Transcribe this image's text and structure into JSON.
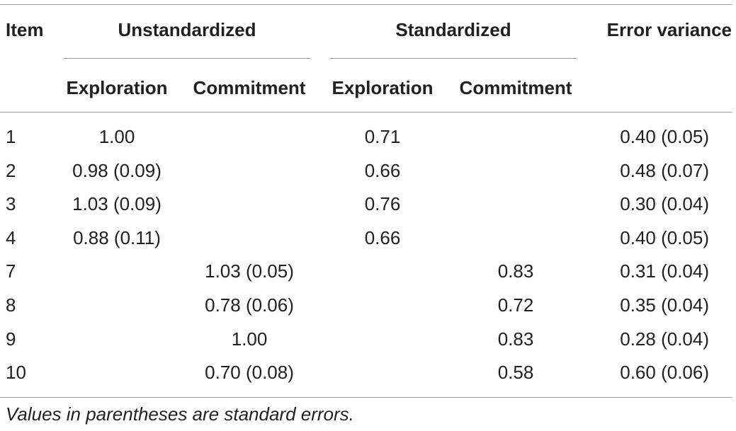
{
  "headers": {
    "item": "Item",
    "unstandardized": "Unstandardized",
    "standardized": "Standardized",
    "error_variance": "Error variance",
    "sub": [
      "Exploration",
      "Commitment",
      "Exploration",
      "Commitment"
    ]
  },
  "rows": [
    {
      "item": "1",
      "u_exp": "1.00",
      "u_com": "",
      "s_exp": "0.71",
      "s_com": "",
      "err": "0.40 (0.05)"
    },
    {
      "item": "2",
      "u_exp": "0.98 (0.09)",
      "u_com": "",
      "s_exp": "0.66",
      "s_com": "",
      "err": "0.48 (0.07)"
    },
    {
      "item": "3",
      "u_exp": "1.03 (0.09)",
      "u_com": "",
      "s_exp": "0.76",
      "s_com": "",
      "err": "0.30 (0.04)"
    },
    {
      "item": "4",
      "u_exp": "0.88 (0.11)",
      "u_com": "",
      "s_exp": "0.66",
      "s_com": "",
      "err": "0.40 (0.05)"
    },
    {
      "item": "7",
      "u_exp": "",
      "u_com": "1.03 (0.05)",
      "s_exp": "",
      "s_com": "0.83",
      "err": "0.31 (0.04)"
    },
    {
      "item": "8",
      "u_exp": "",
      "u_com": "0.78 (0.06)",
      "s_exp": "",
      "s_com": "0.72",
      "err": "0.35 (0.04)"
    },
    {
      "item": "9",
      "u_exp": "",
      "u_com": "1.00",
      "s_exp": "",
      "s_com": "0.83",
      "err": "0.28 (0.04)"
    },
    {
      "item": "10",
      "u_exp": "",
      "u_com": "0.70 (0.08)",
      "s_exp": "",
      "s_com": "0.58",
      "err": "0.60 (0.06)"
    }
  ],
  "footnote": "Values in parentheses are standard errors."
}
